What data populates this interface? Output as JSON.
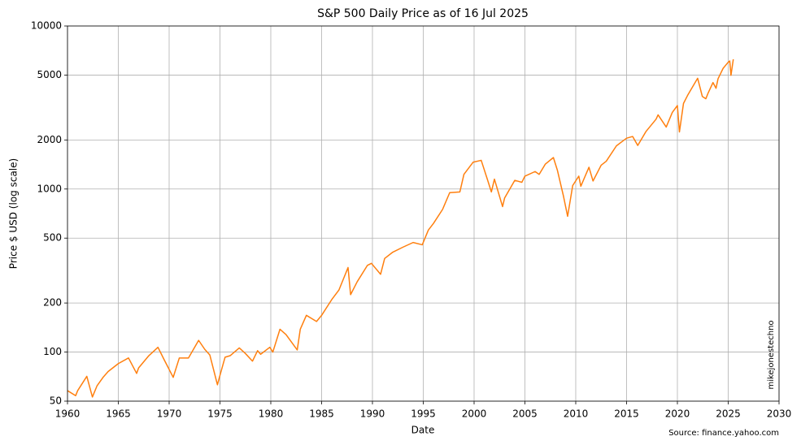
{
  "chart_data": {
    "type": "line",
    "title": "S&P 500 Daily Price as of 16 Jul 2025",
    "x_label": "Date",
    "y_label": "Price $ USD (log scale)",
    "annotations": [
      "mikejonestechno",
      "Source: finance.yahoo.com"
    ],
    "log_y": true,
    "grid": true,
    "xlim": [
      1960,
      2030
    ],
    "xticks": [
      1960,
      1965,
      1970,
      1975,
      1980,
      1985,
      1990,
      1995,
      2000,
      2005,
      2010,
      2015,
      2020,
      2025,
      2030
    ],
    "ylim": [
      50,
      10000
    ],
    "yticks": [
      50,
      100,
      200,
      500,
      1000,
      2000,
      5000,
      10000
    ],
    "series": [
      {
        "name": "S&P 500",
        "color": "#ff7f0e",
        "x": [
          1960.0,
          1960.8,
          1961.0,
          1961.9,
          1962.45,
          1962.9,
          1963.5,
          1964.0,
          1965.0,
          1966.0,
          1966.8,
          1967.0,
          1968.0,
          1968.9,
          1969.5,
          1970.4,
          1971.0,
          1971.9,
          1972.9,
          1973.5,
          1974.0,
          1974.75,
          1975.0,
          1975.5,
          1976.0,
          1976.9,
          1977.5,
          1978.2,
          1978.7,
          1979.0,
          1979.9,
          1980.2,
          1980.9,
          1981.5,
          1982.6,
          1982.9,
          1983.5,
          1984.5,
          1985.0,
          1986.0,
          1986.7,
          1987.6,
          1987.85,
          1988.5,
          1989.5,
          1989.9,
          1990.8,
          1991.2,
          1992.0,
          1993.0,
          1994.0,
          1994.9,
          1995.5,
          1996.0,
          1996.9,
          1997.6,
          1998.6,
          1999.0,
          1999.9,
          2000.7,
          2001.3,
          2001.7,
          2002.0,
          2002.8,
          2003.0,
          2004.0,
          2004.7,
          2005.0,
          2006.0,
          2006.4,
          2007.0,
          2007.8,
          2008.2,
          2008.8,
          2009.2,
          2009.7,
          2010.3,
          2010.5,
          2011.3,
          2011.7,
          2012.5,
          2013.0,
          2014.0,
          2015.0,
          2015.6,
          2016.1,
          2016.9,
          2017.9,
          2018.1,
          2018.9,
          2019.5,
          2020.0,
          2020.2,
          2020.6,
          2021.0,
          2021.99,
          2022.45,
          2022.8,
          2023.0,
          2023.5,
          2023.8,
          2024.0,
          2024.5,
          2025.0,
          2025.15,
          2025.27,
          2025.5
        ],
        "values": [
          58,
          54,
          58,
          71,
          53,
          62,
          70,
          76,
          85,
          92,
          74,
          80,
          95,
          107,
          90,
          70,
          92,
          92,
          118,
          104,
          96,
          63,
          72,
          93,
          95,
          106,
          98,
          88,
          102,
          97,
          107,
          100,
          138,
          128,
          103,
          138,
          168,
          154,
          168,
          210,
          240,
          330,
          225,
          270,
          340,
          350,
          300,
          375,
          410,
          440,
          470,
          455,
          560,
          615,
          750,
          950,
          960,
          1230,
          1460,
          1500,
          1150,
          960,
          1150,
          780,
          880,
          1130,
          1100,
          1200,
          1280,
          1230,
          1420,
          1560,
          1300,
          900,
          680,
          1050,
          1200,
          1040,
          1360,
          1120,
          1400,
          1480,
          1840,
          2050,
          2100,
          1850,
          2250,
          2680,
          2850,
          2400,
          2950,
          3250,
          2240,
          3350,
          3750,
          4780,
          3700,
          3580,
          3850,
          4500,
          4150,
          4750,
          5500,
          6000,
          6100,
          4980,
          6250
        ]
      }
    ]
  }
}
